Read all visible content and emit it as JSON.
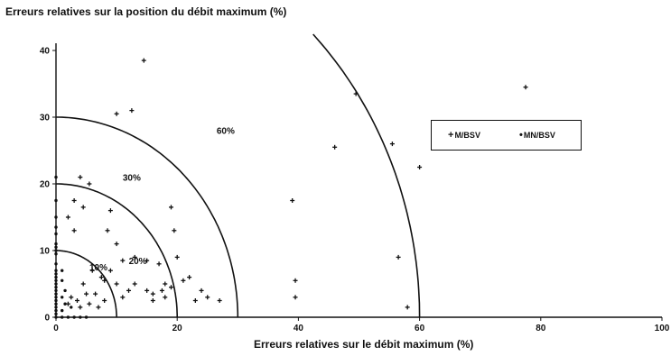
{
  "chart_data": {
    "type": "scatter",
    "title": "",
    "xlabel": "Erreurs relatives sur le débit maximum (%)",
    "ylabel": "Erreurs relatives sur la position du débit maximum (%)",
    "xlim": [
      0,
      100
    ],
    "ylim": [
      0,
      40
    ],
    "xticks": [
      "0",
      "20",
      "40",
      "60",
      "80",
      "100"
    ],
    "yticks": [
      "0",
      "10",
      "20",
      "30",
      "40"
    ],
    "legend_position": "top-right",
    "grid": false,
    "series": [
      {
        "name": "M/BSV",
        "marker": "+",
        "points": [
          [
            14.5,
            38.5
          ],
          [
            10,
            30.5
          ],
          [
            12.5,
            31
          ],
          [
            77.5,
            34.5
          ],
          [
            49.5,
            33.5
          ],
          [
            46,
            25.5
          ],
          [
            55.5,
            26
          ],
          [
            60,
            22.5
          ],
          [
            39,
            17.5
          ],
          [
            56.5,
            9
          ],
          [
            39.5,
            5.5
          ],
          [
            39.5,
            3
          ],
          [
            58,
            1.5
          ],
          [
            4,
            21
          ],
          [
            5.5,
            20
          ],
          [
            3,
            17.5
          ],
          [
            2,
            15
          ],
          [
            4.5,
            16.5
          ],
          [
            9,
            16
          ],
          [
            19,
            16.5
          ],
          [
            19.5,
            13
          ],
          [
            3,
            13
          ],
          [
            8.5,
            13
          ],
          [
            10,
            11
          ],
          [
            11,
            8.5
          ],
          [
            13,
            9
          ],
          [
            15,
            8.5
          ],
          [
            17,
            8
          ],
          [
            20,
            9
          ],
          [
            6,
            7
          ],
          [
            7.5,
            6
          ],
          [
            8,
            5.5
          ],
          [
            4.5,
            5
          ],
          [
            5,
            3.5
          ],
          [
            6.5,
            3.5
          ],
          [
            2.5,
            3
          ],
          [
            13,
            5
          ],
          [
            15,
            4
          ],
          [
            16,
            3.5
          ],
          [
            17.5,
            4
          ],
          [
            18,
            3
          ],
          [
            21,
            5.5
          ],
          [
            22,
            6
          ],
          [
            24,
            4
          ],
          [
            25,
            3
          ],
          [
            27,
            2.5
          ],
          [
            23,
            2.5
          ],
          [
            18,
            5
          ],
          [
            12,
            4
          ],
          [
            11,
            3
          ],
          [
            2,
            2
          ],
          [
            3.5,
            2.5
          ],
          [
            4,
            1.5
          ],
          [
            5.5,
            2
          ],
          [
            7,
            1.5
          ],
          [
            8,
            2.5
          ],
          [
            10,
            5
          ],
          [
            9,
            7
          ],
          [
            16,
            2.5
          ],
          [
            19,
            4.5
          ]
        ]
      },
      {
        "name": "MN/BSV",
        "marker": "•",
        "points": [
          [
            0,
            21
          ],
          [
            0,
            17.5
          ],
          [
            0,
            15
          ],
          [
            0,
            13.5
          ],
          [
            0,
            12.5
          ],
          [
            0,
            11
          ],
          [
            0,
            10.5
          ],
          [
            0,
            10
          ],
          [
            0,
            9.5
          ],
          [
            0,
            8
          ],
          [
            0,
            7
          ],
          [
            0,
            6.5
          ],
          [
            0,
            6
          ],
          [
            0,
            5.5
          ],
          [
            0,
            5
          ],
          [
            0,
            4.5
          ],
          [
            0,
            4
          ],
          [
            0,
            3.5
          ],
          [
            0,
            3
          ],
          [
            0,
            2.5
          ],
          [
            0,
            2
          ],
          [
            0,
            1.5
          ],
          [
            0,
            1
          ],
          [
            0,
            0.5
          ],
          [
            0,
            0
          ],
          [
            1,
            0
          ],
          [
            2,
            0
          ],
          [
            3,
            0
          ],
          [
            4,
            0
          ],
          [
            5,
            0
          ],
          [
            1,
            7
          ],
          [
            1,
            5.5
          ],
          [
            1.5,
            4
          ],
          [
            1,
            3
          ],
          [
            1.5,
            2
          ],
          [
            1,
            1
          ],
          [
            2.5,
            1.5
          ]
        ]
      }
    ],
    "annotations": [
      {
        "text": "10%",
        "radius": 10
      },
      {
        "text": "20%",
        "radius": 20
      },
      {
        "text": "30%",
        "radius": 30
      },
      {
        "text": "60%",
        "radius": 60
      }
    ]
  }
}
